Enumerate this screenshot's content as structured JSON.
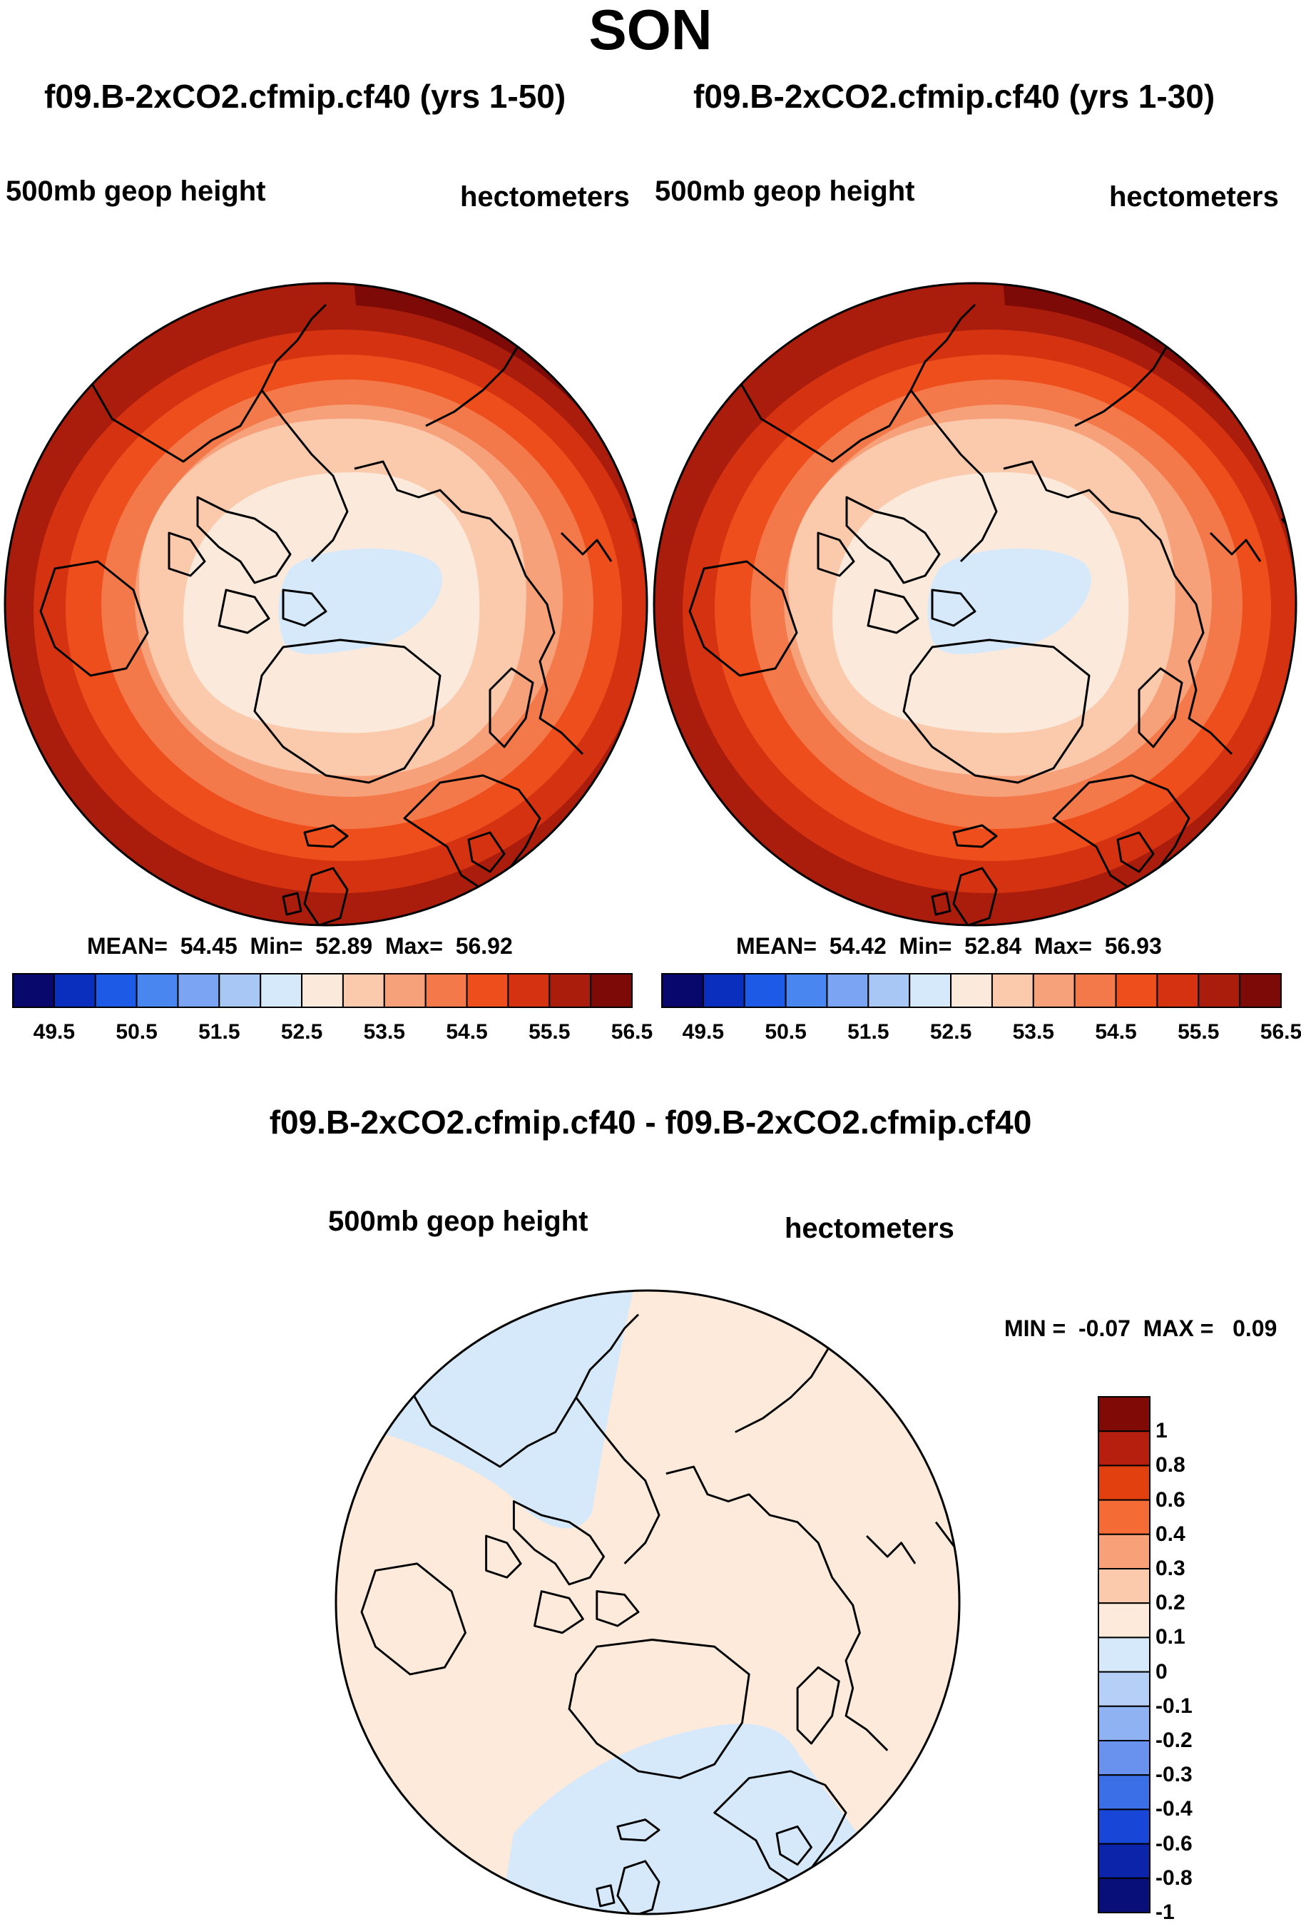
{
  "title": "SON",
  "panels": [
    {
      "title": "f09.B-2xCO2.cfmip.cf40 (yrs 1-50)",
      "variable": "500mb geop height",
      "units": "hectometers",
      "stats": {
        "mean_label": "MEAN=",
        "mean": "54.45",
        "min_label": "Min=",
        "min": "52.89",
        "max_label": "Max=",
        "max": "56.92"
      }
    },
    {
      "title": "f09.B-2xCO2.cfmip.cf40 (yrs 1-30)",
      "variable": "500mb geop height",
      "units": "hectometers",
      "stats": {
        "mean_label": "MEAN=",
        "mean": "54.42",
        "min_label": "Min=",
        "min": "52.84",
        "max_label": "Max=",
        "max": "56.93"
      }
    }
  ],
  "diff_panel": {
    "title": "f09.B-2xCO2.cfmip.cf40 - f09.B-2xCO2.cfmip.cf40",
    "variable": "500mb geop height",
    "units": "hectometers",
    "stats": {
      "min_label": "MIN =",
      "min": "-0.07",
      "max_label": "MAX =",
      "max": "0.09"
    }
  },
  "colorbar_main": {
    "colors": [
      "#08076b",
      "#0a2fbf",
      "#1d5ae6",
      "#4a86f0",
      "#7ba5f2",
      "#a9c7f5",
      "#d6e9fb",
      "#fbeadb",
      "#fbc9ab",
      "#f7a17b",
      "#f4794a",
      "#ee4e1c",
      "#d43210",
      "#aa1d0c",
      "#7e0a07"
    ],
    "tick_labels": [
      "49.5",
      "50.5",
      "51.5",
      "52.5",
      "53.5",
      "54.5",
      "55.5",
      "56.5"
    ]
  },
  "colorbar_diff": {
    "colors_top_to_bottom": [
      "#800a05",
      "#b61f0e",
      "#e2400f",
      "#f56b35",
      "#f8a179",
      "#fbc9ab",
      "#fdeadb",
      "#d6e9fb",
      "#b5cff7",
      "#8fb2f3",
      "#6892ee",
      "#3b6fe8",
      "#1847d7",
      "#0b24aa",
      "#080f78"
    ],
    "tick_labels": [
      "1",
      "0.8",
      "0.6",
      "0.4",
      "0.3",
      "0.2",
      "0.1",
      "0",
      "-0.1",
      "-0.2",
      "-0.3",
      "-0.4",
      "-0.6",
      "-0.8",
      "-1"
    ]
  }
}
